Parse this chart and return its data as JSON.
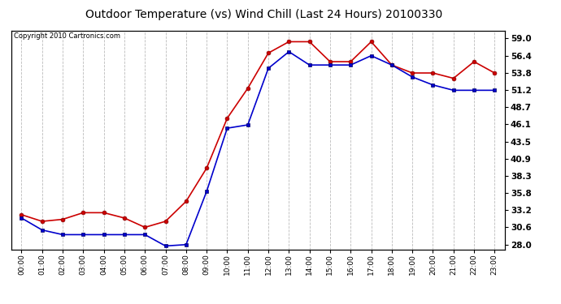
{
  "title": "Outdoor Temperature (vs) Wind Chill (Last 24 Hours) 20100330",
  "copyright": "Copyright 2010 Cartronics.com",
  "x_labels": [
    "00:00",
    "01:00",
    "02:00",
    "03:00",
    "04:00",
    "05:00",
    "06:00",
    "07:00",
    "08:00",
    "09:00",
    "10:00",
    "11:00",
    "12:00",
    "13:00",
    "14:00",
    "15:00",
    "16:00",
    "17:00",
    "18:00",
    "19:00",
    "20:00",
    "21:00",
    "22:00",
    "23:00"
  ],
  "temp": [
    32.5,
    31.5,
    31.8,
    32.8,
    32.8,
    32.0,
    30.6,
    31.5,
    34.5,
    39.5,
    47.0,
    51.5,
    56.8,
    58.5,
    58.5,
    55.5,
    55.5,
    58.5,
    55.0,
    53.8,
    53.8,
    53.0,
    55.5,
    53.8
  ],
  "wind_chill": [
    32.0,
    30.2,
    29.5,
    29.5,
    29.5,
    29.5,
    29.5,
    27.8,
    28.0,
    36.0,
    45.5,
    46.0,
    54.5,
    57.0,
    55.0,
    55.0,
    55.0,
    56.4,
    55.0,
    53.2,
    52.0,
    51.2,
    51.2,
    51.2
  ],
  "temp_color": "#cc0000",
  "wind_chill_color": "#0000cc",
  "yticks": [
    28.0,
    30.6,
    33.2,
    35.8,
    38.3,
    40.9,
    43.5,
    46.1,
    48.7,
    51.2,
    53.8,
    56.4,
    59.0
  ],
  "ylim": [
    27.3,
    60.2
  ],
  "bg_color": "#ffffff",
  "grid_color": "#bbbbbb",
  "marker_size": 3.5,
  "line_width": 1.2
}
